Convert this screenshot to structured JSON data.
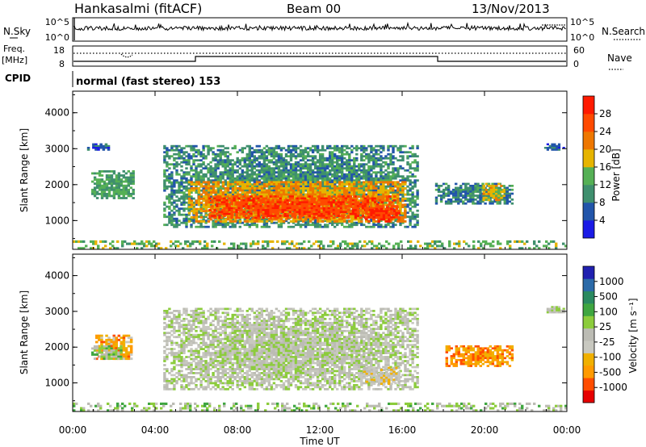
{
  "header": {
    "station": "Hankasalmi (fitACF)",
    "beam": "Beam 00",
    "date": "13/Nov/2013"
  },
  "nsky_panel": {
    "left_label": "N.Sky",
    "left_ticks": [
      "10^5",
      "10^0"
    ],
    "right_ticks": [
      "10^5",
      "10^0"
    ],
    "right_label": "N.Search"
  },
  "freq_panel": {
    "left_label": "Freq.",
    "left_unit": "[MHz]",
    "left_ticks": [
      "18",
      "8"
    ],
    "right_ticks": [
      "60",
      "0"
    ],
    "right_label": "Nave"
  },
  "cpid": {
    "label": "CPID",
    "value": "normal (fast stereo) 153"
  },
  "colors": {
    "power_scale": [
      "#1a1ae6",
      "#2255aa",
      "#3f8f6e",
      "#55b055",
      "#e6b400",
      "#ee7700",
      "#ff4a00",
      "#ff1a00"
    ],
    "velocity_scale": [
      "#e60000",
      "#ff4d00",
      "#ff9a00",
      "#f0b000",
      "#c8c8c0",
      "#bcbcb4",
      "#8ccc3c",
      "#3fa640",
      "#2a8a60",
      "#2b6aa8",
      "#2020b0"
    ]
  },
  "chart_data": [
    {
      "type": "heatmap",
      "name": "power-panel",
      "ylabel": "Slant Range [km]",
      "y_ticks": [
        "1000",
        "2000",
        "3000",
        "4000"
      ],
      "ylim": [
        200,
        4600
      ],
      "xlim": [
        0,
        24
      ],
      "colorbar_label": "Power [dB]",
      "colorbar_ticks": [
        "4",
        "8",
        "12",
        "16",
        "20",
        "24",
        "28"
      ],
      "colorbar_range": [
        0,
        32
      ],
      "regions": [
        {
          "t0": 0.9,
          "t1": 3.0,
          "r0": 1600,
          "r1": 2400,
          "level": 12
        },
        {
          "t0": 0.7,
          "t1": 1.8,
          "r0": 2950,
          "r1": 3150,
          "level": 6
        },
        {
          "t0": 4.4,
          "t1": 16.8,
          "r0": 800,
          "r1": 3100,
          "level": 10
        },
        {
          "t0": 5.6,
          "t1": 16.2,
          "r0": 950,
          "r1": 2100,
          "level": 20
        },
        {
          "t0": 6.6,
          "t1": 15.8,
          "r0": 1050,
          "r1": 1700,
          "level": 27
        },
        {
          "t0": 14.2,
          "t1": 15.9,
          "r0": 950,
          "r1": 1350,
          "level": 28
        },
        {
          "t0": 17.6,
          "t1": 21.4,
          "r0": 1450,
          "r1": 2050,
          "level": 9
        },
        {
          "t0": 19.9,
          "t1": 21.0,
          "r0": 1550,
          "r1": 2050,
          "level": 18
        },
        {
          "t0": 22.9,
          "t1": 23.9,
          "r0": 2950,
          "r1": 3150,
          "level": 6
        },
        {
          "t0": 0.0,
          "t1": 24.0,
          "r0": 200,
          "r1": 450,
          "level": 14
        }
      ]
    },
    {
      "type": "heatmap",
      "name": "velocity-panel",
      "ylabel": "Slant Range [km]",
      "y_ticks": [
        "1000",
        "2000",
        "3000",
        "4000"
      ],
      "ylim": [
        200,
        4600
      ],
      "xlim": [
        0,
        24
      ],
      "colorbar_label": "Velocity [m s⁻¹]",
      "colorbar_ticks": [
        "-1000",
        "-500",
        "-100",
        "-25",
        "25",
        "100",
        "500",
        "1000"
      ],
      "colorbar_range": [
        -1300,
        1300
      ],
      "regions": [
        {
          "t0": 4.4,
          "t1": 16.8,
          "r0": 800,
          "r1": 3100,
          "level": 0
        },
        {
          "t0": 1.1,
          "t1": 2.9,
          "r0": 1650,
          "r1": 2350,
          "level": -600
        },
        {
          "t0": 0.9,
          "t1": 2.4,
          "r0": 1650,
          "r1": 2050,
          "level": 200
        },
        {
          "t0": 14.1,
          "t1": 15.9,
          "r0": 950,
          "r1": 1450,
          "level": -250
        },
        {
          "t0": 18.1,
          "t1": 21.4,
          "r0": 1450,
          "r1": 2050,
          "level": -700
        },
        {
          "t0": 22.9,
          "t1": 23.9,
          "r0": 2950,
          "r1": 3150,
          "level": 0
        },
        {
          "t0": 0.0,
          "t1": 24.0,
          "r0": 200,
          "r1": 450,
          "level": 150
        }
      ]
    }
  ],
  "x_axis": {
    "ticks": [
      "00:00",
      "04:00",
      "08:00",
      "12:00",
      "16:00",
      "20:00",
      "00:00"
    ],
    "tick_hours": [
      0,
      4,
      8,
      12,
      16,
      20,
      24
    ],
    "label": "Time UT"
  }
}
